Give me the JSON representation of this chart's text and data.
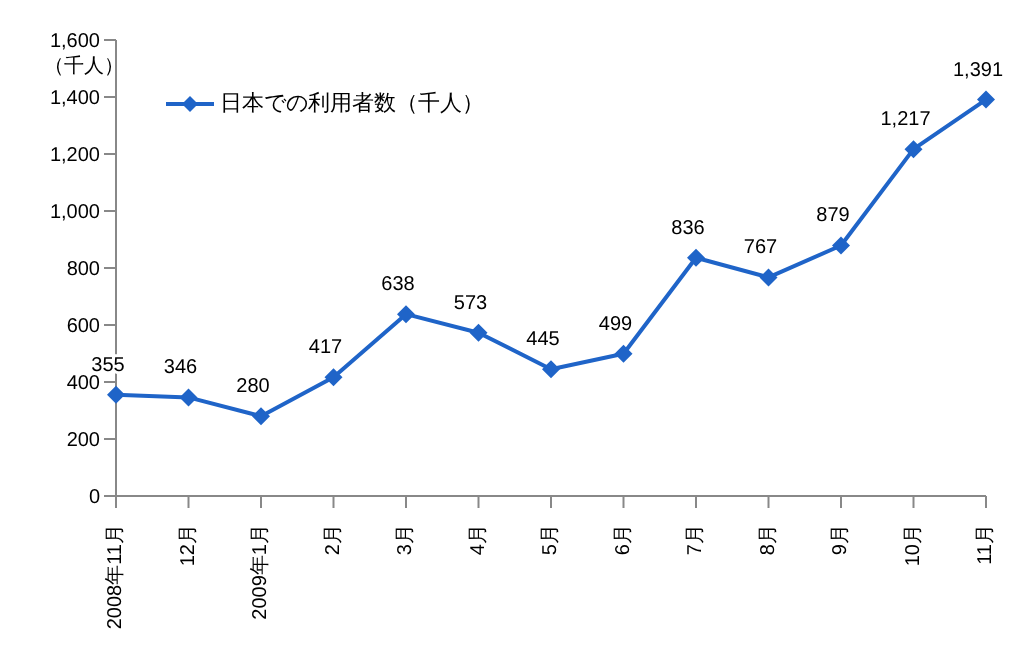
{
  "chart_data": {
    "type": "line",
    "ylabel": "（千人）",
    "categories": [
      "2008年11月",
      "12月",
      "2009年1月",
      "2月",
      "3月",
      "4月",
      "5月",
      "6月",
      "7月",
      "8月",
      "9月",
      "10月",
      "11月"
    ],
    "series": [
      {
        "name": "日本での利用者数（千人）",
        "color": "#1f64c8",
        "values": [
          355,
          346,
          280,
          417,
          638,
          573,
          445,
          499,
          836,
          767,
          879,
          1217,
          1391
        ],
        "value_labels": [
          "355",
          "346",
          "280",
          "417",
          "638",
          "573",
          "445",
          "499",
          "836",
          "767",
          "879",
          "1,217",
          "1,391"
        ]
      }
    ],
    "ylim": [
      0,
      1600
    ],
    "yticks": [
      {
        "value": 0,
        "label": "0"
      },
      {
        "value": 200,
        "label": "200"
      },
      {
        "value": 400,
        "label": "400"
      },
      {
        "value": 600,
        "label": "600"
      },
      {
        "value": 800,
        "label": "800"
      },
      {
        "value": 1000,
        "label": "1,000"
      },
      {
        "value": 1200,
        "label": "1,200"
      },
      {
        "value": 1400,
        "label": "1,400"
      },
      {
        "value": 1600,
        "label": "1,600"
      }
    ],
    "grid": false,
    "legend": "top left",
    "marker": "diamond",
    "line_style": "solid"
  }
}
